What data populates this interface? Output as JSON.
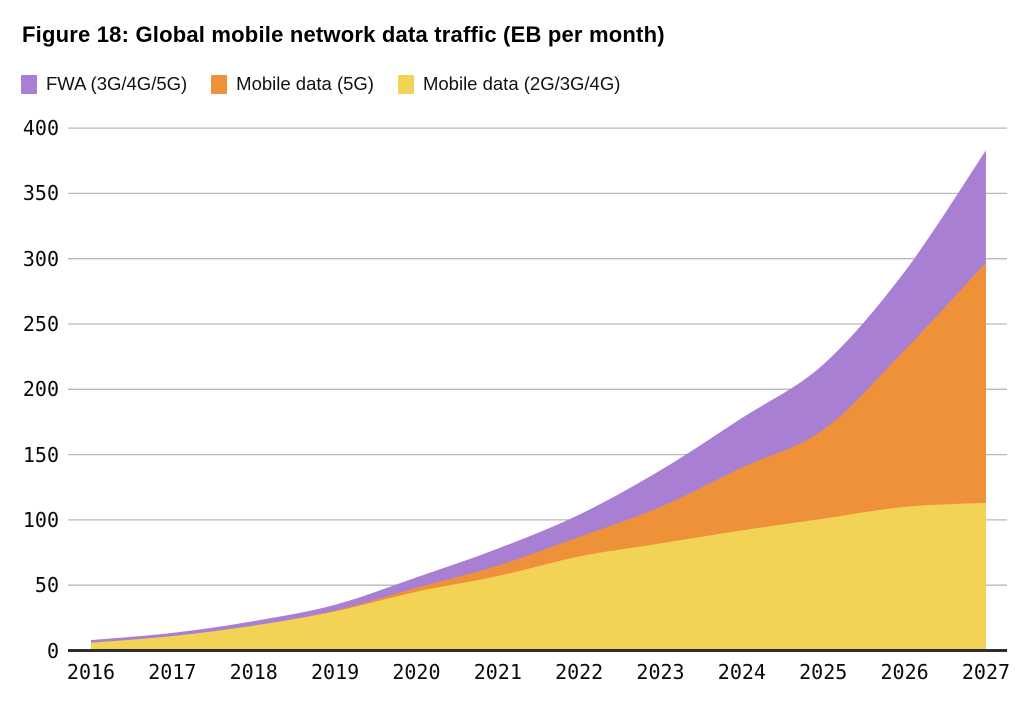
{
  "title": "Figure 18: Global mobile network data traffic (EB per month)",
  "legend": {
    "items": [
      {
        "label": "FWA (3G/4G/5G)",
        "color": "#a87fd3"
      },
      {
        "label": "Mobile data (5G)",
        "color": "#ef9138"
      },
      {
        "label": "Mobile data (2G/3G/4G)",
        "color": "#f2d355"
      }
    ]
  },
  "colors": {
    "fwa_purple": "#a87fd3",
    "mobile5g_orange": "#ef9138",
    "mobile234g_yellow": "#f2d355",
    "gridline": "#b9b9b9",
    "axis": "#2e2e2e",
    "text": "#0a0a0a"
  },
  "chart_data": {
    "type": "area",
    "stacked": true,
    "title": "Figure 18: Global mobile network data traffic (EB per month)",
    "xlabel": "",
    "ylabel": "EB per month",
    "categories": [
      "2016",
      "2017",
      "2018",
      "2019",
      "2020",
      "2021",
      "2022",
      "2023",
      "2024",
      "2025",
      "2026",
      "2027"
    ],
    "series": [
      {
        "name": "FWA (3G/4G/5G)",
        "color": "#a87fd3",
        "values": [
          2,
          2.5,
          3.5,
          4.5,
          8,
          13,
          17,
          28,
          38,
          50,
          60,
          86
        ]
      },
      {
        "name": "Mobile data (5G)",
        "color": "#ef9138",
        "values": [
          0,
          0,
          0,
          0.5,
          3,
          8,
          15,
          28,
          48,
          68,
          120,
          184
        ]
      },
      {
        "name": "Mobile data (2G/3G/4G)",
        "color": "#f2d355",
        "values": [
          6,
          11,
          19,
          30,
          45,
          57,
          72,
          82,
          92,
          101,
          110,
          113
        ]
      }
    ],
    "stack_order_bottom_to_top": [
      "Mobile data (2G/3G/4G)",
      "Mobile data (5G)",
      "FWA (3G/4G/5G)"
    ],
    "stacked_totals": [
      8,
      13.5,
      22.5,
      35,
      56,
      78,
      104,
      138,
      178,
      219,
      290,
      383
    ],
    "ylim": [
      0,
      400
    ],
    "y_ticks": [
      0,
      50,
      100,
      150,
      200,
      250,
      300,
      350,
      400
    ],
    "grid": "horizontal",
    "legend_position": "top-left"
  }
}
